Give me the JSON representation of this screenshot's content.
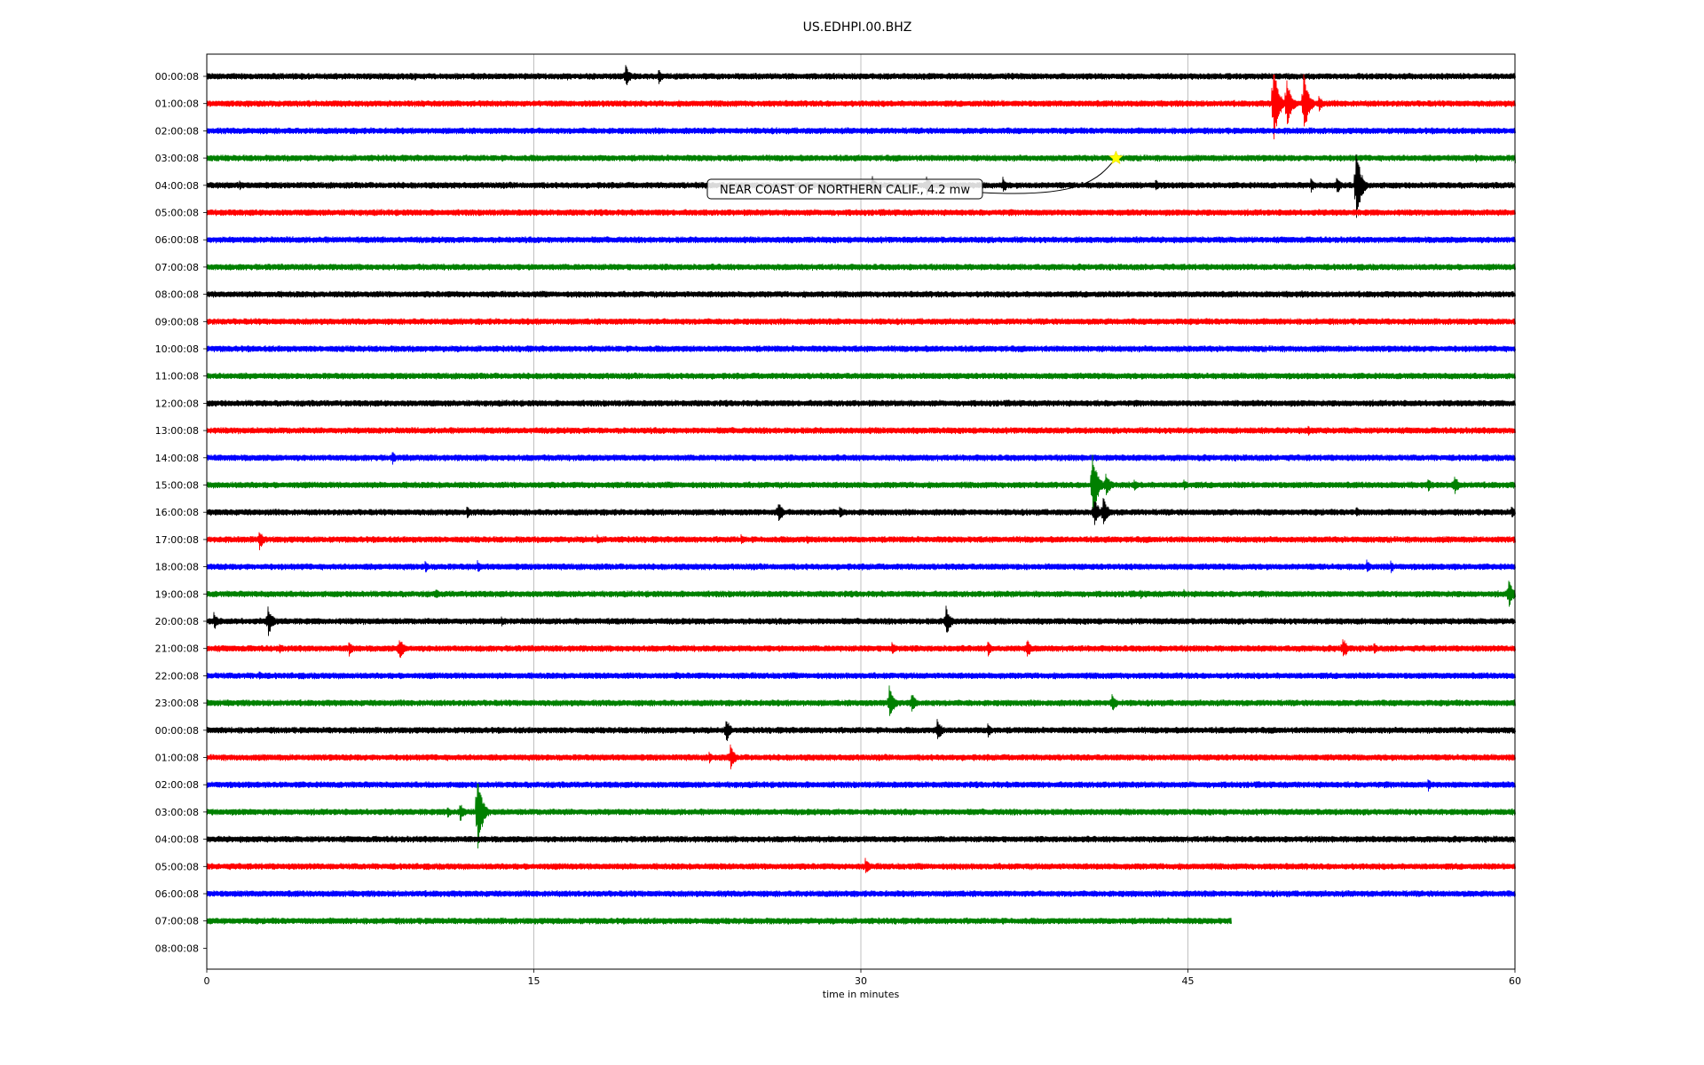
{
  "chart_data": {
    "type": "line",
    "title": "US.EDHPI.00.BHZ",
    "xlabel": "time in minutes",
    "ylabel": "",
    "xlim": [
      0,
      60
    ],
    "x_ticks": [
      0,
      15,
      30,
      45,
      60
    ],
    "grid": "vertical",
    "row_labels": [
      "00:00:08",
      "01:00:08",
      "02:00:08",
      "03:00:08",
      "04:00:08",
      "05:00:08",
      "06:00:08",
      "07:00:08",
      "08:00:08",
      "09:00:08",
      "10:00:08",
      "11:00:08",
      "12:00:08",
      "13:00:08",
      "14:00:08",
      "15:00:08",
      "16:00:08",
      "17:00:08",
      "18:00:08",
      "19:00:08",
      "20:00:08",
      "21:00:08",
      "22:00:08",
      "23:00:08",
      "00:00:08",
      "01:00:08",
      "02:00:08",
      "03:00:08",
      "04:00:08",
      "05:00:08",
      "06:00:08",
      "07:00:08",
      "08:00:08"
    ],
    "trace_colors": [
      "#000000",
      "#ff0000",
      "#0000ff",
      "#008000"
    ],
    "last_trace_end_minute": 47,
    "spikes": [
      {
        "row": 0,
        "minute": 19.2,
        "amp": 14
      },
      {
        "row": 0,
        "minute": 20.7,
        "amp": 10
      },
      {
        "row": 0,
        "minute": 9.5,
        "amp": 6
      },
      {
        "row": 0,
        "minute": 16.5,
        "amp": 5
      },
      {
        "row": 1,
        "minute": 48.9,
        "amp": 55
      },
      {
        "row": 1,
        "minute": 49.5,
        "amp": 35
      },
      {
        "row": 1,
        "minute": 50.3,
        "amp": 40
      },
      {
        "row": 1,
        "minute": 51.0,
        "amp": 10
      },
      {
        "row": 3,
        "minute": 58.2,
        "amp": 6
      },
      {
        "row": 3,
        "minute": 60.0,
        "amp": 8
      },
      {
        "row": 4,
        "minute": 52.7,
        "amp": 50
      },
      {
        "row": 4,
        "minute": 51.8,
        "amp": 12
      },
      {
        "row": 4,
        "minute": 50.6,
        "amp": 10
      },
      {
        "row": 4,
        "minute": 30.5,
        "amp": 12
      },
      {
        "row": 4,
        "minute": 33.0,
        "amp": 12
      },
      {
        "row": 4,
        "minute": 36.5,
        "amp": 10
      },
      {
        "row": 4,
        "minute": 43.5,
        "amp": 8
      },
      {
        "row": 4,
        "minute": 1.5,
        "amp": 6
      },
      {
        "row": 8,
        "minute": 28.2,
        "amp": 5
      },
      {
        "row": 8,
        "minute": 50.2,
        "amp": 5
      },
      {
        "row": 13,
        "minute": 50.5,
        "amp": 6
      },
      {
        "row": 14,
        "minute": 8.5,
        "amp": 8
      },
      {
        "row": 15,
        "minute": 40.6,
        "amp": 48
      },
      {
        "row": 15,
        "minute": 41.2,
        "amp": 18
      },
      {
        "row": 15,
        "minute": 42.5,
        "amp": 8
      },
      {
        "row": 15,
        "minute": 44.8,
        "amp": 7
      },
      {
        "row": 15,
        "minute": 56.0,
        "amp": 8
      },
      {
        "row": 15,
        "minute": 57.2,
        "amp": 14
      },
      {
        "row": 16,
        "minute": 40.7,
        "amp": 18
      },
      {
        "row": 16,
        "minute": 41.1,
        "amp": 20
      },
      {
        "row": 16,
        "minute": 26.2,
        "amp": 14
      },
      {
        "row": 16,
        "minute": 11.9,
        "amp": 8
      },
      {
        "row": 16,
        "minute": 29.0,
        "amp": 8
      },
      {
        "row": 16,
        "minute": 52.7,
        "amp": 7
      },
      {
        "row": 16,
        "minute": 59.8,
        "amp": 8
      },
      {
        "row": 17,
        "minute": 2.4,
        "amp": 12
      },
      {
        "row": 17,
        "minute": 17.9,
        "amp": 6
      },
      {
        "row": 17,
        "minute": 24.5,
        "amp": 6
      },
      {
        "row": 17,
        "minute": 27.5,
        "amp": 6
      },
      {
        "row": 17,
        "minute": 37.5,
        "amp": 5
      },
      {
        "row": 18,
        "minute": 10.0,
        "amp": 8
      },
      {
        "row": 18,
        "minute": 12.4,
        "amp": 8
      },
      {
        "row": 18,
        "minute": 53.2,
        "amp": 8
      },
      {
        "row": 18,
        "minute": 54.3,
        "amp": 7
      },
      {
        "row": 18,
        "minute": 57.2,
        "amp": 6
      },
      {
        "row": 19,
        "minute": 59.7,
        "amp": 18
      },
      {
        "row": 19,
        "minute": 10.5,
        "amp": 6
      },
      {
        "row": 19,
        "minute": 12.3,
        "amp": 5
      },
      {
        "row": 19,
        "minute": 42.8,
        "amp": 6
      },
      {
        "row": 19,
        "minute": 44.8,
        "amp": 6
      },
      {
        "row": 20,
        "minute": 0.3,
        "amp": 12
      },
      {
        "row": 20,
        "minute": 2.8,
        "amp": 18
      },
      {
        "row": 20,
        "minute": 33.9,
        "amp": 18
      },
      {
        "row": 20,
        "minute": 13.5,
        "amp": 6
      },
      {
        "row": 21,
        "minute": 8.8,
        "amp": 16
      },
      {
        "row": 21,
        "minute": 6.5,
        "amp": 10
      },
      {
        "row": 21,
        "minute": 3.3,
        "amp": 8
      },
      {
        "row": 21,
        "minute": 31.4,
        "amp": 10
      },
      {
        "row": 21,
        "minute": 35.8,
        "amp": 10
      },
      {
        "row": 21,
        "minute": 37.6,
        "amp": 12
      },
      {
        "row": 21,
        "minute": 52.1,
        "amp": 14
      },
      {
        "row": 21,
        "minute": 53.5,
        "amp": 8
      },
      {
        "row": 22,
        "minute": 2.4,
        "amp": 6
      },
      {
        "row": 22,
        "minute": 21.5,
        "amp": 5
      },
      {
        "row": 23,
        "minute": 31.3,
        "amp": 22
      },
      {
        "row": 23,
        "minute": 32.3,
        "amp": 14
      },
      {
        "row": 23,
        "minute": 41.5,
        "amp": 12
      },
      {
        "row": 24,
        "minute": 23.8,
        "amp": 16
      },
      {
        "row": 24,
        "minute": 33.5,
        "amp": 14
      },
      {
        "row": 24,
        "minute": 35.8,
        "amp": 10
      },
      {
        "row": 25,
        "minute": 24.0,
        "amp": 16
      },
      {
        "row": 25,
        "minute": 23.0,
        "amp": 8
      },
      {
        "row": 26,
        "minute": 56.0,
        "amp": 8
      },
      {
        "row": 27,
        "minute": 12.4,
        "amp": 52
      },
      {
        "row": 27,
        "minute": 11.6,
        "amp": 12
      },
      {
        "row": 27,
        "minute": 11.0,
        "amp": 8
      },
      {
        "row": 29,
        "minute": 30.2,
        "amp": 10
      },
      {
        "row": 28,
        "minute": 23.3,
        "amp": 4
      }
    ],
    "annotation": {
      "label": "NEAR COAST OF NORTHERN CALIF., 4.2 mw",
      "row": 3,
      "minute": 41.7,
      "marker": "star",
      "marker_color": "#ffff00"
    }
  }
}
